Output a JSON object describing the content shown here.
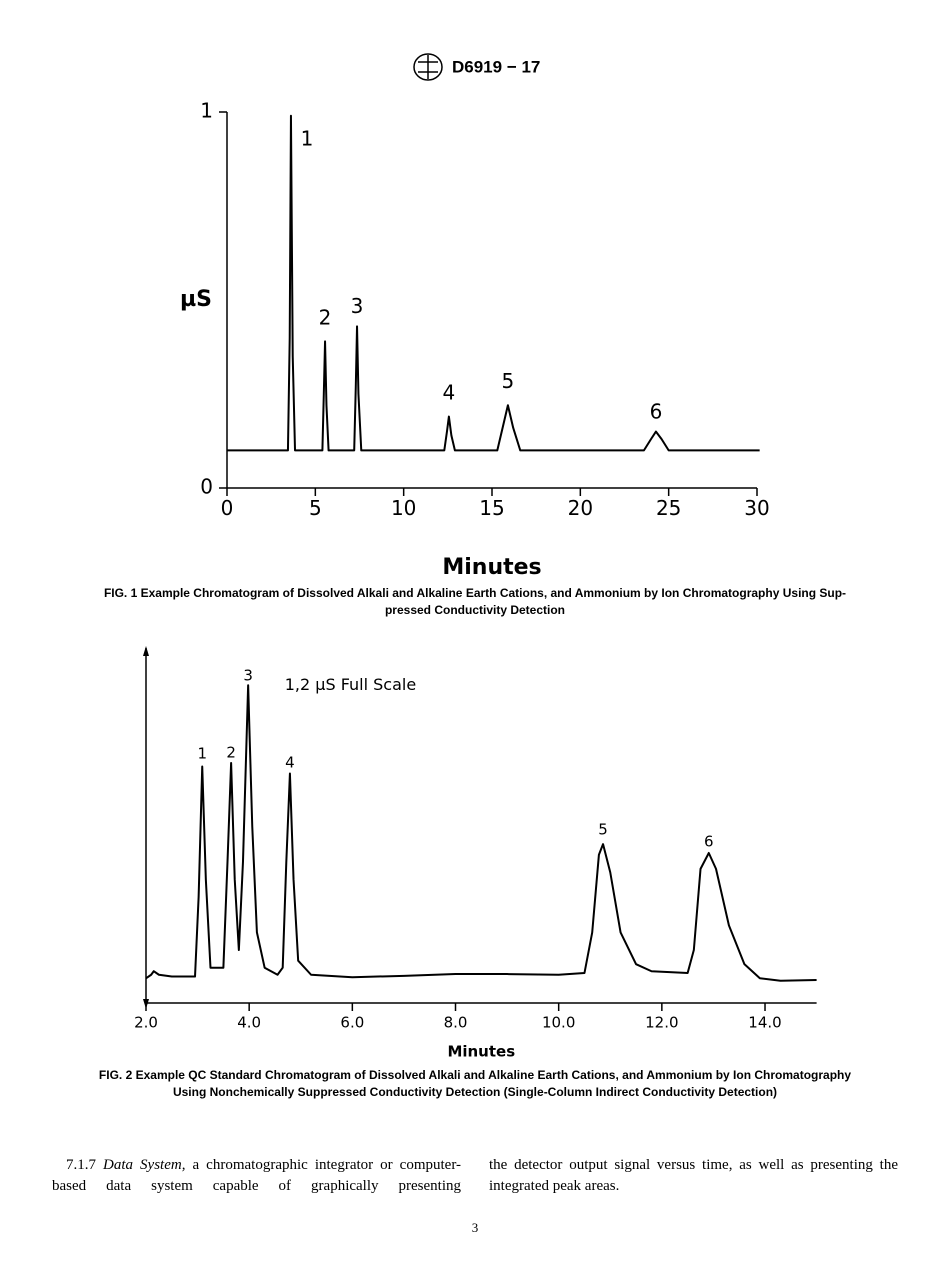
{
  "header": {
    "designation": "D6919 − 17"
  },
  "chart_data": [
    {
      "type": "line",
      "caption": [
        "FIG. 1 Example Chromatogram of Dissolved Alkali and Alkaline Earth Cations, and Ammonium by Ion Chromatography Using Sup-",
        "pressed Conductivity Detection"
      ],
      "x_label": "Minutes",
      "y_label": "µS",
      "color": "#000000",
      "x": [
        0,
        3.45,
        3.55,
        3.62,
        3.72,
        3.85,
        5.4,
        5.48,
        5.55,
        5.63,
        5.75,
        7.2,
        7.29,
        7.36,
        7.44,
        7.6,
        12.3,
        12.45,
        12.56,
        12.7,
        12.9,
        15.3,
        15.6,
        15.9,
        16.2,
        16.6,
        23.6,
        24.0,
        24.28,
        24.6,
        25.0,
        30.15
      ],
      "values": [
        0.1,
        0.1,
        0.4,
        0.99,
        0.35,
        0.1,
        0.1,
        0.25,
        0.39,
        0.22,
        0.1,
        0.1,
        0.27,
        0.43,
        0.25,
        0.1,
        0.1,
        0.15,
        0.19,
        0.14,
        0.1,
        0.1,
        0.16,
        0.22,
        0.16,
        0.1,
        0.1,
        0.13,
        0.15,
        0.13,
        0.1,
        0.1
      ],
      "xlim": [
        0,
        30
      ],
      "ylim": [
        0,
        1
      ],
      "xticks": [
        0,
        5,
        10,
        15,
        20,
        25,
        30
      ],
      "yticks": [
        0,
        1
      ],
      "annotations": [
        {
          "text": "1",
          "x": 4.53,
          "y": 0.926
        },
        {
          "text": "2",
          "x": 5.55,
          "y": 0.45
        },
        {
          "text": "3",
          "x": 7.36,
          "y": 0.48
        },
        {
          "text": "4",
          "x": 12.56,
          "y": 0.25
        },
        {
          "text": "5",
          "x": 15.9,
          "y": 0.28
        },
        {
          "text": "6",
          "x": 24.28,
          "y": 0.2
        }
      ]
    },
    {
      "type": "line",
      "caption": [
        "FIG. 2 Example QC Standard Chromatogram of Dissolved Alkali and Alkaline Earth Cations, and Ammonium by Ion Chromatography",
        "Using Nonchemically Suppressed Conductivity Detection (Single-Column Indirect Conductivity Detection)"
      ],
      "x_label": "Minutes",
      "color": "#000000",
      "x": [
        2.0,
        2.1,
        2.15,
        2.25,
        2.5,
        2.95,
        3.02,
        3.09,
        3.16,
        3.25,
        3.5,
        3.58,
        3.65,
        3.72,
        3.8,
        3.88,
        3.98,
        4.06,
        4.15,
        4.3,
        4.55,
        4.65,
        4.72,
        4.79,
        4.86,
        4.95,
        5.2,
        6.0,
        7.0,
        8.0,
        9.0,
        10.0,
        10.5,
        10.65,
        10.78,
        10.86,
        11.0,
        11.2,
        11.5,
        11.8,
        12.5,
        12.62,
        12.75,
        12.91,
        13.05,
        13.3,
        13.6,
        13.9,
        14.3,
        15.0
      ],
      "values": [
        0.07,
        0.08,
        0.09,
        0.08,
        0.075,
        0.075,
        0.3,
        0.67,
        0.35,
        0.1,
        0.1,
        0.4,
        0.68,
        0.35,
        0.15,
        0.4,
        0.9,
        0.5,
        0.2,
        0.1,
        0.08,
        0.1,
        0.4,
        0.65,
        0.35,
        0.12,
        0.08,
        0.073,
        0.077,
        0.082,
        0.082,
        0.08,
        0.085,
        0.2,
        0.42,
        0.45,
        0.37,
        0.2,
        0.11,
        0.09,
        0.085,
        0.15,
        0.38,
        0.425,
        0.38,
        0.22,
        0.11,
        0.07,
        0.063,
        0.065
      ],
      "xlim": [
        2,
        15
      ],
      "ylim": [
        0,
        1
      ],
      "xticks": [
        {
          "value": 2,
          "label": "2.0"
        },
        {
          "value": 4,
          "label": "4.0"
        },
        {
          "value": 6,
          "label": "6.0"
        },
        {
          "value": 8,
          "label": "8.0"
        },
        {
          "value": 10,
          "label": "10.0"
        },
        {
          "value": 12,
          "label": "12.0"
        },
        {
          "value": 14,
          "label": "14.0"
        }
      ],
      "annotations": [
        {
          "text": "1",
          "x": 3.09,
          "y": 0.705
        },
        {
          "text": "2",
          "x": 3.65,
          "y": 0.708
        },
        {
          "text": "3",
          "x": 3.98,
          "y": 0.926
        },
        {
          "text": "4",
          "x": 4.79,
          "y": 0.68
        },
        {
          "text": "5",
          "x": 10.86,
          "y": 0.49
        },
        {
          "text": "6",
          "x": 12.91,
          "y": 0.456
        }
      ],
      "note": {
        "text": "1,2 µS Full Scale",
        "x": 4.69,
        "y": 0.9
      }
    }
  ],
  "body": {
    "section": "7.1.7",
    "term": "Data System,",
    "column_1": "a chromatographic integrator or computer-based data system capable of graphically presenting",
    "column_2": "the detector output signal versus time, as well as presenting the integrated peak areas."
  },
  "page_number": "3"
}
